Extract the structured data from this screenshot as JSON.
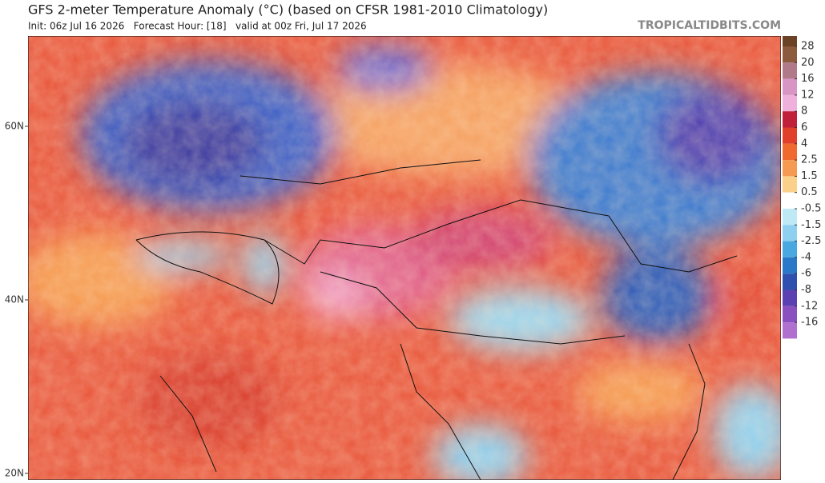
{
  "header": {
    "title": "GFS 2-meter Temperature Anomaly (°C) (based on CFSR 1981-2010 Climatology)",
    "subtitle": "Init: 06z Jul 16 2026   Forecast Hour: [18]   valid at 00z Fri, Jul 17 2026",
    "site": "TROPICALTIDBITS.COM"
  },
  "map": {
    "lat_labels": [
      "60N",
      "40N",
      "20N"
    ]
  },
  "colorbar": {
    "labels": [
      "28",
      "20",
      "16",
      "12",
      "8",
      "6",
      "4",
      "2.5",
      "1.5",
      "0.5",
      "-0.5",
      "-1.5",
      "-2.5",
      "-4",
      "-6",
      "-8",
      "-12",
      "-16"
    ],
    "colors": [
      "#6b4226",
      "#8c5a3c",
      "#b07a8a",
      "#d896c4",
      "#f0b0dc",
      "#c0203a",
      "#e0402a",
      "#f06a30",
      "#f59a50",
      "#fbd08a",
      "#ffffff",
      "#bfeaf5",
      "#8fd0f0",
      "#4aa8e0",
      "#2a78c8",
      "#3050b0",
      "#5a40b0",
      "#8a50c0",
      "#b070d0"
    ]
  }
}
